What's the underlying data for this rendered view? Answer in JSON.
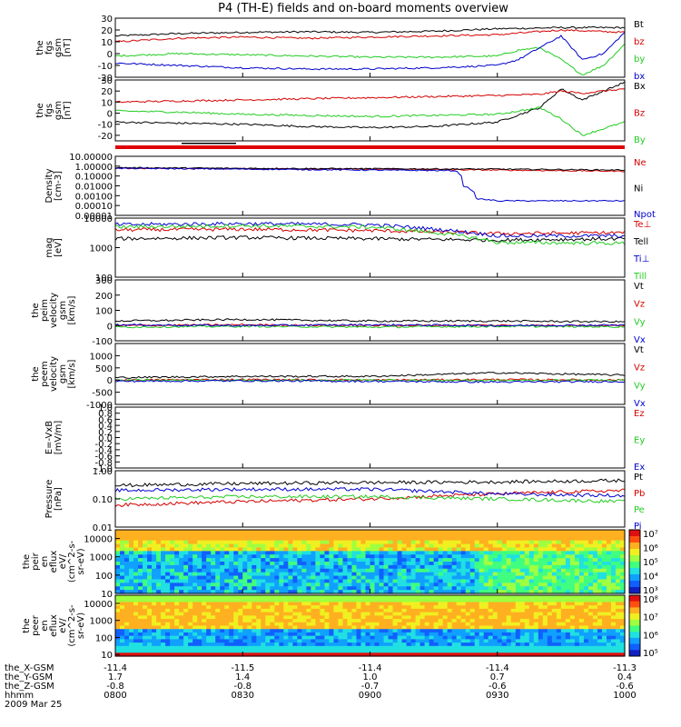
{
  "title": "P4 (TH-E) fields and on-board moments overview",
  "colors": {
    "black": "#000000",
    "red": "#d40000",
    "green": "#22cc22",
    "blue": "#0000cc"
  },
  "chart_data": [
    {
      "type": "line",
      "ylabel": [
        "the",
        "fgs",
        "gsm",
        "[nT]"
      ],
      "ylim": [
        -20,
        30
      ],
      "yticks": [
        "30",
        "20",
        "10",
        "0",
        "-10",
        "-20"
      ],
      "ytickvals": [
        30,
        20,
        10,
        0,
        -10,
        -20
      ],
      "series": [
        {
          "name": "Bt",
          "color": "#000000",
          "x": [
            0,
            15,
            30,
            45,
            60,
            75,
            90,
            105,
            120
          ],
          "y": [
            15,
            17,
            18,
            18.5,
            18,
            19,
            21,
            22,
            22
          ]
        },
        {
          "name": "bz",
          "color": "#d40000",
          "x": [
            0,
            15,
            30,
            45,
            60,
            75,
            90,
            105,
            120
          ],
          "y": [
            10,
            13,
            14,
            13,
            14,
            15,
            16,
            20,
            18
          ]
        },
        {
          "name": "by",
          "color": "#22cc22",
          "x": [
            0,
            15,
            30,
            45,
            60,
            75,
            90,
            95,
            100,
            105,
            110,
            115,
            120
          ],
          "y": [
            -2,
            0,
            -1,
            -2,
            -3,
            -3,
            -2,
            3,
            5,
            -5,
            -18,
            -10,
            8
          ]
        },
        {
          "name": "bx",
          "color": "#0000cc",
          "x": [
            0,
            15,
            30,
            45,
            60,
            75,
            90,
            95,
            100,
            105,
            110,
            115,
            120
          ],
          "y": [
            -8,
            -10,
            -12,
            -13,
            -13,
            -12,
            -10,
            -5,
            5,
            15,
            -5,
            0,
            18
          ]
        }
      ]
    },
    {
      "type": "line",
      "ylabel": [
        "the",
        "fgs",
        "gsm",
        "[nT]"
      ],
      "ylim": [
        -25,
        30
      ],
      "yticks": [
        "30",
        "20",
        "10",
        "0",
        "-10",
        "-20"
      ],
      "ytickvals": [
        30,
        20,
        10,
        0,
        -10,
        -20
      ],
      "series": [
        {
          "name": "Bx",
          "color": "#000000",
          "x": [
            0,
            15,
            30,
            45,
            60,
            75,
            90,
            100,
            105,
            110,
            120
          ],
          "y": [
            -8,
            -9,
            -10,
            -12,
            -13,
            -12,
            -8,
            5,
            22,
            12,
            28
          ]
        },
        {
          "name": "Bz",
          "color": "#d40000",
          "x": [
            0,
            15,
            30,
            45,
            60,
            75,
            90,
            100,
            105,
            110,
            120
          ],
          "y": [
            10,
            11,
            12,
            13,
            14,
            15,
            16,
            17,
            20,
            18,
            22
          ]
        },
        {
          "name": "By",
          "color": "#22cc22",
          "x": [
            0,
            15,
            30,
            45,
            60,
            75,
            90,
            100,
            105,
            110,
            120
          ],
          "y": [
            2,
            1,
            -1,
            -2,
            -3,
            -2,
            -1,
            5,
            -5,
            -20,
            -8
          ]
        }
      ]
    },
    {
      "type": "line",
      "ylabel": [
        "Density",
        "[cm-3]"
      ],
      "log": true,
      "ylim": [
        1e-05,
        10
      ],
      "yticks": [
        "10.00000",
        "1.00000",
        "0.10000",
        "0.01000",
        "0.00100",
        "0.00010",
        "0.00001"
      ],
      "ytickvals": [
        10,
        1,
        0.1,
        0.01,
        0.001,
        0.0001,
        1e-05
      ],
      "series": [
        {
          "name": "Ne",
          "color": "#d40000",
          "x": [
            0,
            30,
            60,
            90,
            120
          ],
          "y": [
            0.6,
            0.55,
            0.5,
            0.4,
            0.3
          ]
        },
        {
          "name": "Ni",
          "color": "#000000",
          "x": [
            0,
            30,
            60,
            90,
            120
          ],
          "y": [
            0.7,
            0.6,
            0.55,
            0.5,
            0.4
          ]
        },
        {
          "name": "Npot",
          "color": "#0000cc",
          "x": [
            0,
            30,
            60,
            80,
            82,
            85,
            90,
            100,
            120
          ],
          "y": [
            0.6,
            0.5,
            0.4,
            0.35,
            0.01,
            0.0005,
            0.0003,
            0.0003,
            0.0003
          ]
        }
      ]
    },
    {
      "type": "line",
      "ylabel": [
        "mag",
        "[eV]"
      ],
      "log": true,
      "ylim": [
        100,
        10000
      ],
      "yticks": [
        "10000",
        "1000",
        "100"
      ],
      "ytickvals": [
        10000,
        1000,
        100
      ],
      "series": [
        {
          "name": "Te⊥",
          "color": "#d40000",
          "x": [
            0,
            30,
            60,
            90,
            120
          ],
          "y": [
            4000,
            4200,
            3800,
            3000,
            3200
          ]
        },
        {
          "name": "Tell",
          "color": "#000000",
          "x": [
            0,
            30,
            60,
            90,
            120
          ],
          "y": [
            2000,
            2200,
            2000,
            1800,
            2000
          ]
        },
        {
          "name": "Ti⊥",
          "color": "#0000cc",
          "x": [
            0,
            30,
            60,
            90,
            120
          ],
          "y": [
            6000,
            6500,
            6000,
            2500,
            2500
          ]
        },
        {
          "name": "Till",
          "color": "#22cc22",
          "x": [
            0,
            30,
            60,
            90,
            120
          ],
          "y": [
            5000,
            5500,
            5000,
            1500,
            1400
          ]
        }
      ]
    },
    {
      "type": "line",
      "ylabel": [
        "the",
        "peim",
        "velocity",
        "gsm",
        "[km/s]"
      ],
      "ylim": [
        -100,
        300
      ],
      "yticks": [
        "300",
        "200",
        "100",
        "0",
        "-100"
      ],
      "ytickvals": [
        300,
        200,
        100,
        0,
        -100
      ],
      "series": [
        {
          "name": "Vt",
          "color": "#000000",
          "x": [
            0,
            30,
            60,
            90,
            120
          ],
          "y": [
            30,
            40,
            30,
            30,
            25
          ]
        },
        {
          "name": "Vz",
          "color": "#d40000",
          "x": [
            0,
            30,
            60,
            90,
            120
          ],
          "y": [
            0,
            5,
            0,
            2,
            0
          ]
        },
        {
          "name": "Vy",
          "color": "#22cc22",
          "x": [
            0,
            30,
            60,
            90,
            120
          ],
          "y": [
            -10,
            -5,
            -10,
            -5,
            -8
          ]
        },
        {
          "name": "Vx",
          "color": "#0000cc",
          "x": [
            0,
            30,
            60,
            90,
            120
          ],
          "y": [
            5,
            0,
            5,
            0,
            3
          ]
        }
      ]
    },
    {
      "type": "line",
      "ylabel": [
        "the",
        "peem",
        "velocity",
        "gsm",
        "[km/s]"
      ],
      "ylim": [
        -1000,
        1500
      ],
      "yticks": [
        "1000",
        "500",
        "0",
        "-500",
        "-1000"
      ],
      "ytickvals": [
        1000,
        500,
        0,
        -500,
        -1000
      ],
      "series": [
        {
          "name": "Vt",
          "color": "#000000",
          "x": [
            0,
            30,
            60,
            90,
            120
          ],
          "y": [
            100,
            150,
            150,
            300,
            200
          ]
        },
        {
          "name": "Vz",
          "color": "#d40000",
          "x": [
            0,
            30,
            60,
            90,
            120
          ],
          "y": [
            0,
            20,
            0,
            20,
            0
          ]
        },
        {
          "name": "Vy",
          "color": "#22cc22",
          "x": [
            0,
            30,
            60,
            90,
            120
          ],
          "y": [
            0,
            -20,
            0,
            -20,
            0
          ]
        },
        {
          "name": "Vx",
          "color": "#0000cc",
          "x": [
            0,
            30,
            60,
            90,
            120
          ],
          "y": [
            -50,
            -30,
            -50,
            -80,
            -60
          ]
        }
      ]
    },
    {
      "type": "line",
      "ylabel": [
        "E=-VxB",
        "[mV/m]"
      ],
      "ylim": [
        -1,
        1
      ],
      "yticks": [
        "1.0",
        "0.8",
        "0.6",
        "0.4",
        "0.2",
        "0.0",
        "-0.2",
        "-0.4",
        "-0.6",
        "-0.8",
        "-1.0"
      ],
      "ytickvals": [
        1,
        0.8,
        0.6,
        0.4,
        0.2,
        0,
        -0.2,
        -0.4,
        -0.6,
        -0.8,
        -1
      ],
      "series": [
        {
          "name": "Ez",
          "color": "#d40000",
          "x": [],
          "y": []
        },
        {
          "name": "Ey",
          "color": "#22cc22",
          "x": [],
          "y": []
        },
        {
          "name": "Ex",
          "color": "#0000cc",
          "x": [],
          "y": []
        }
      ]
    },
    {
      "type": "line",
      "ylabel": [
        "Pressure",
        "[nPa]"
      ],
      "log": true,
      "ylim": [
        0.01,
        1
      ],
      "yticks": [
        "1.00",
        "0.10",
        "0.01"
      ],
      "ytickvals": [
        1,
        0.1,
        0.01
      ],
      "series": [
        {
          "name": "Pt",
          "color": "#000000",
          "x": [
            0,
            30,
            60,
            90,
            120
          ],
          "y": [
            0.3,
            0.35,
            0.38,
            0.4,
            0.45
          ]
        },
        {
          "name": "Pb",
          "color": "#d40000",
          "x": [
            0,
            30,
            60,
            90,
            120
          ],
          "y": [
            0.06,
            0.08,
            0.1,
            0.15,
            0.2
          ]
        },
        {
          "name": "Pe",
          "color": "#22cc22",
          "x": [
            0,
            30,
            60,
            90,
            120
          ],
          "y": [
            0.1,
            0.12,
            0.12,
            0.1,
            0.08
          ]
        },
        {
          "name": "Pi",
          "color": "#0000cc",
          "x": [
            0,
            30,
            60,
            90,
            120
          ],
          "y": [
            0.2,
            0.22,
            0.22,
            0.15,
            0.13
          ]
        }
      ]
    },
    {
      "type": "heatmap",
      "ylabel": [
        "the",
        "peir",
        "en",
        "eflux",
        "eV/",
        "(cm^2-s-",
        "sr-eV)"
      ],
      "log": true,
      "ylim": [
        10,
        30000
      ],
      "yticks": [
        "10000",
        "1000",
        "100",
        "10"
      ],
      "ytickvals": [
        10000,
        1000,
        100,
        10
      ],
      "colorbar": {
        "ticks": [
          "10⁷",
          "10⁶",
          "10⁵",
          "10⁴",
          "10³"
        ]
      }
    },
    {
      "type": "heatmap",
      "ylabel": [
        "the",
        "peer",
        "en",
        "eflux",
        "eV/",
        "(cm^2-s-",
        "sr-eV)"
      ],
      "log": true,
      "ylim": [
        8,
        30000
      ],
      "yticks": [
        "10000",
        "1000",
        "100",
        "10"
      ],
      "ytickvals": [
        10000,
        1000,
        100,
        10
      ],
      "colorbar": {
        "ticks": [
          "10⁸",
          "10⁷",
          "10⁶",
          "10⁵"
        ]
      }
    }
  ],
  "xaxis": {
    "rows": [
      {
        "label": "the_X-GSM",
        "values": [
          "-11.4",
          "-11.5",
          "-11.4",
          "-11.4",
          "-11.3"
        ]
      },
      {
        "label": "the_Y-GSM",
        "values": [
          "1.7",
          "1.4",
          "1.0",
          "0.7",
          "0.4"
        ]
      },
      {
        "label": "the_Z-GSM",
        "values": [
          "-0.8",
          "-0.8",
          "-0.7",
          "-0.6",
          "-0.6"
        ]
      },
      {
        "label": "hhmm",
        "values": [
          "0800",
          "0830",
          "0900",
          "0930",
          "1000"
        ]
      }
    ],
    "date": "2009 Mar 25"
  }
}
